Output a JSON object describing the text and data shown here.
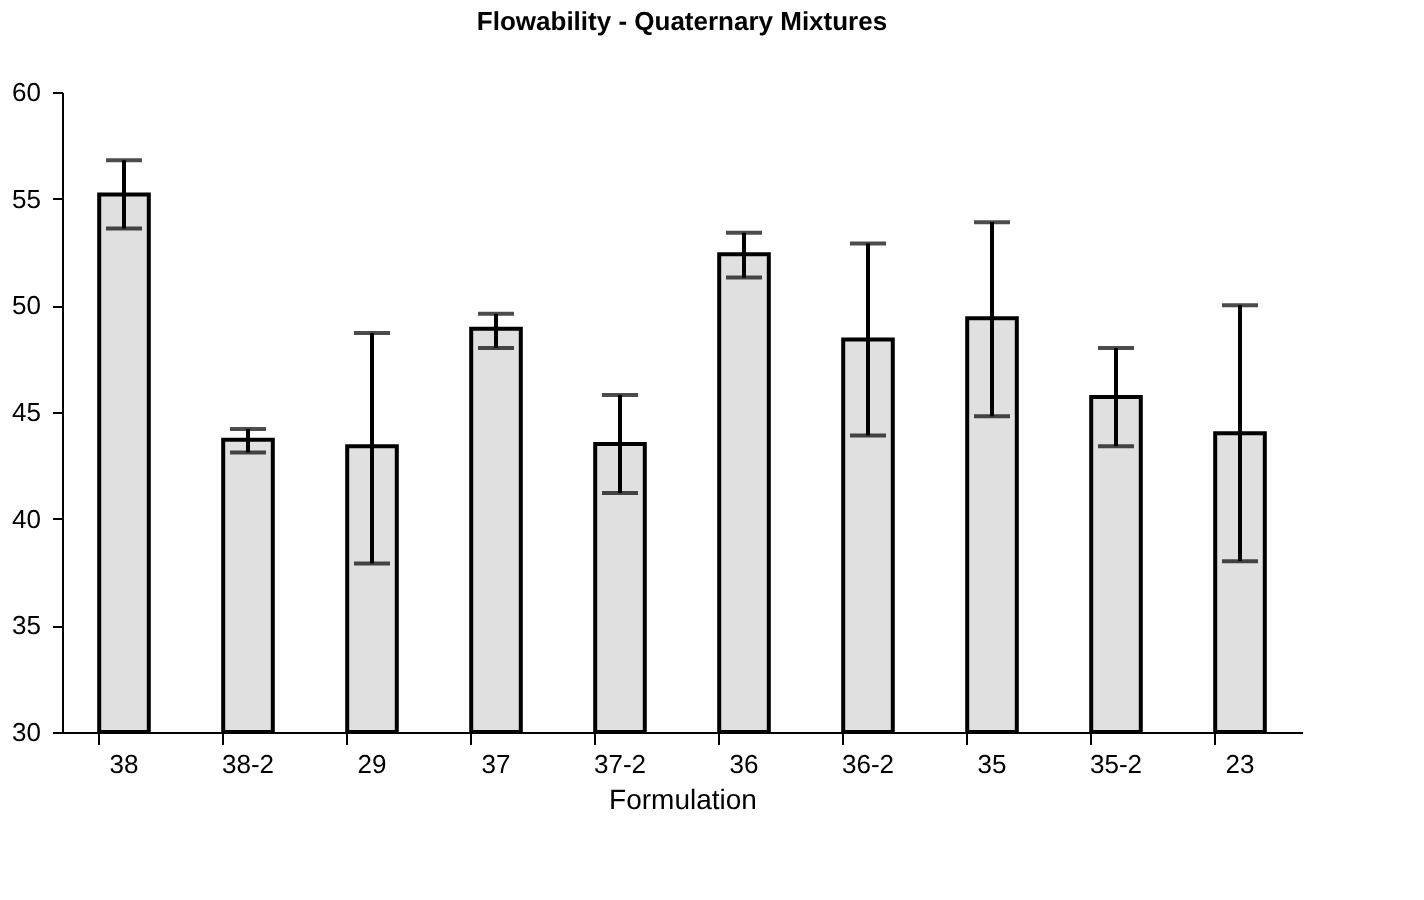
{
  "chart_data": {
    "type": "bar",
    "title": "Flowability - Quaternary Mixtures",
    "xlabel": "Formulation",
    "categories": [
      "38",
      "38-2",
      "29",
      "37",
      "37-2",
      "36",
      "36-2",
      "35",
      "35-2",
      "23"
    ],
    "values": [
      55.2,
      43.7,
      43.4,
      48.9,
      43.5,
      52.4,
      48.4,
      49.4,
      45.7,
      44.0
    ],
    "errors": [
      [
        53.6,
        56.8
      ],
      [
        43.1,
        44.2
      ],
      [
        37.9,
        48.7
      ],
      [
        48.0,
        49.6
      ],
      [
        41.2,
        45.8
      ],
      [
        51.3,
        53.4
      ],
      [
        43.9,
        52.9
      ],
      [
        44.8,
        53.9
      ],
      [
        43.4,
        48.0
      ],
      [
        38.0,
        50.0
      ]
    ],
    "color": "#e0e0e0",
    "ylim": [
      30,
      60
    ],
    "yticks": [
      30,
      35,
      40,
      45,
      50,
      55,
      60
    ],
    "grid": false
  }
}
